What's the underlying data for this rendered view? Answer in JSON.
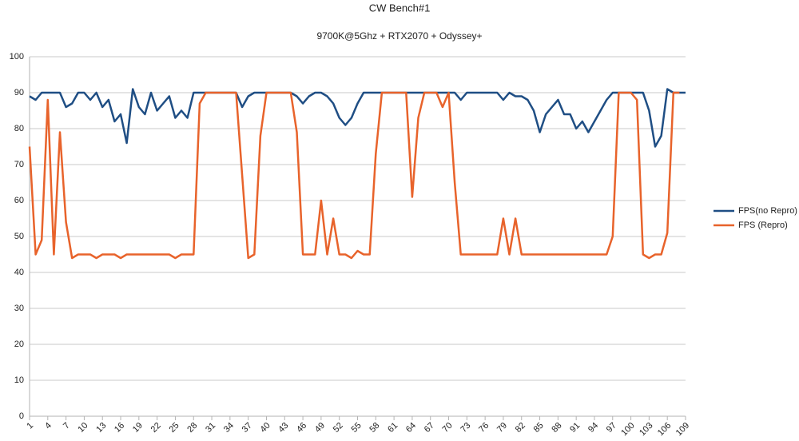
{
  "chart_data": {
    "type": "line",
    "title": "CW Bench#1",
    "subtitle": "9700K@5Ghz + RTX2070 + Odyssey+",
    "x": [
      1,
      2,
      3,
      4,
      5,
      6,
      7,
      8,
      9,
      10,
      11,
      12,
      13,
      14,
      15,
      16,
      17,
      18,
      19,
      20,
      21,
      22,
      23,
      24,
      25,
      26,
      27,
      28,
      29,
      30,
      31,
      32,
      33,
      34,
      35,
      36,
      37,
      38,
      39,
      40,
      41,
      42,
      43,
      44,
      45,
      46,
      47,
      48,
      49,
      50,
      51,
      52,
      53,
      54,
      55,
      56,
      57,
      58,
      59,
      60,
      61,
      62,
      63,
      64,
      65,
      66,
      67,
      68,
      69,
      70,
      71,
      72,
      73,
      74,
      75,
      76,
      77,
      78,
      79,
      80,
      81,
      82,
      83,
      84,
      85,
      86,
      87,
      88,
      89,
      90,
      91,
      92,
      93,
      94,
      95,
      96,
      97,
      98,
      99,
      100,
      101,
      102,
      103,
      104,
      105,
      106,
      107,
      108,
      109
    ],
    "xlim": [
      1,
      109
    ],
    "xticks": [
      1,
      4,
      7,
      10,
      13,
      16,
      19,
      22,
      25,
      28,
      31,
      34,
      37,
      40,
      43,
      46,
      49,
      52,
      55,
      58,
      61,
      64,
      67,
      70,
      73,
      76,
      79,
      82,
      85,
      88,
      91,
      94,
      97,
      100,
      103,
      106,
      109
    ],
    "ylim": [
      0,
      100
    ],
    "yticks": [
      0,
      10,
      20,
      30,
      40,
      50,
      60,
      70,
      80,
      90,
      100
    ],
    "grid": true,
    "legend": "right",
    "series": [
      {
        "name": "FPS(no Repro)",
        "color": "#1f4e84",
        "values": [
          89,
          88,
          90,
          90,
          90,
          90,
          86,
          87,
          90,
          90,
          88,
          90,
          86,
          88,
          82,
          84,
          76,
          91,
          86,
          84,
          90,
          85,
          87,
          89,
          83,
          85,
          83,
          90,
          90,
          90,
          90,
          90,
          90,
          90,
          90,
          86,
          89,
          90,
          90,
          90,
          90,
          90,
          90,
          90,
          89,
          87,
          89,
          90,
          90,
          89,
          87,
          83,
          81,
          83,
          87,
          90,
          90,
          90,
          90,
          90,
          90,
          90,
          90,
          90,
          90,
          90,
          90,
          90,
          90,
          90,
          90,
          88,
          90,
          90,
          90,
          90,
          90,
          90,
          88,
          90,
          89,
          89,
          88,
          85,
          79,
          84,
          86,
          88,
          84,
          84,
          80,
          82,
          79,
          82,
          85,
          88,
          90,
          90,
          90,
          90,
          90,
          90,
          85,
          75,
          78,
          91,
          90,
          90,
          90
        ]
      },
      {
        "name": "FPS (Repro)",
        "color": "#e8632b",
        "values": [
          75,
          45,
          49,
          88,
          45,
          79,
          54,
          44,
          45,
          45,
          45,
          44,
          45,
          45,
          45,
          44,
          45,
          45,
          45,
          45,
          45,
          45,
          45,
          45,
          44,
          45,
          45,
          45,
          87,
          90,
          90,
          90,
          90,
          90,
          90,
          67,
          44,
          45,
          78,
          90,
          90,
          90,
          90,
          90,
          79,
          45,
          45,
          45,
          60,
          45,
          55,
          45,
          45,
          44,
          46,
          45,
          45,
          73,
          90,
          90,
          90,
          90,
          90,
          61,
          83,
          90,
          90,
          90,
          86,
          90,
          65,
          45,
          45,
          45,
          45,
          45,
          45,
          45,
          55,
          45,
          55,
          45,
          45,
          45,
          45,
          45,
          45,
          45,
          45,
          45,
          45,
          45,
          45,
          45,
          45,
          45,
          50,
          90,
          90,
          90,
          88,
          45,
          44,
          45,
          45,
          51,
          90,
          90,
          null
        ]
      }
    ]
  }
}
